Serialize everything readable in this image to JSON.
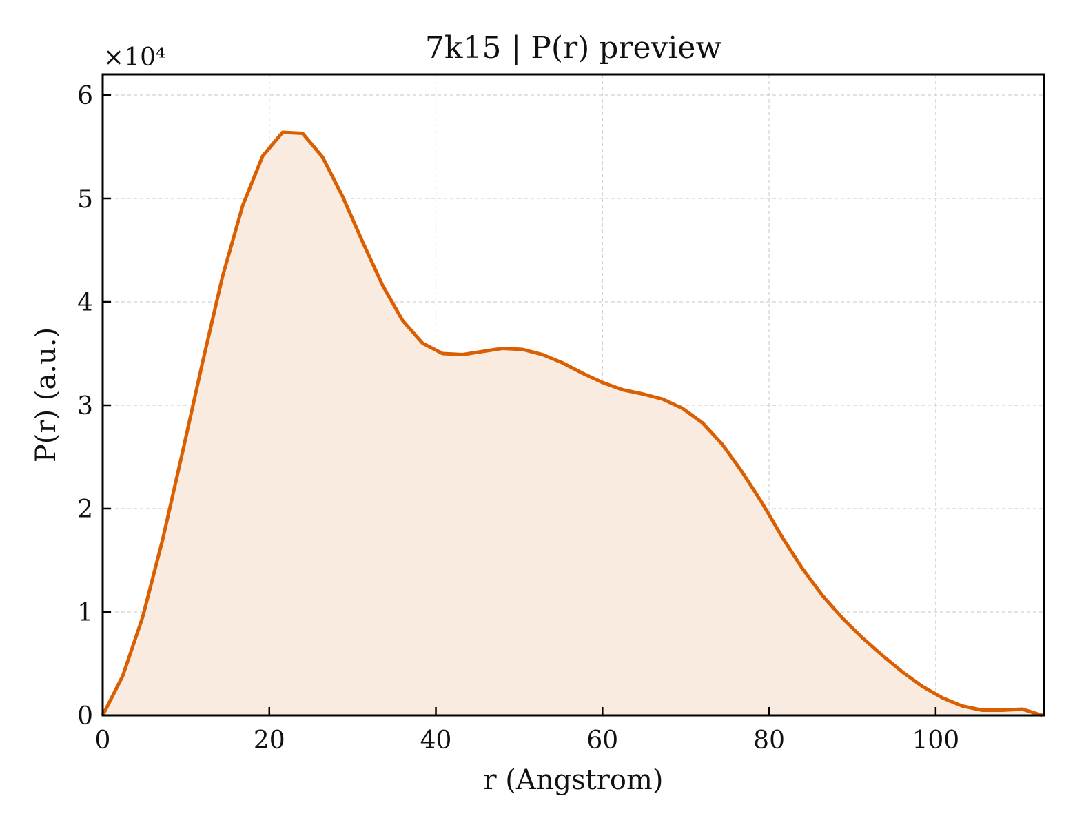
{
  "chart_data": {
    "type": "area",
    "title": "7k15 | P(r) preview",
    "xlabel": "r (Angstrom)",
    "ylabel": "P(r) (a.u.)",
    "y_multiplier_label": "×10⁴",
    "xlim": [
      0,
      113
    ],
    "ylim": [
      0,
      6.2
    ],
    "x_ticks": [
      0,
      20,
      40,
      60,
      80,
      100
    ],
    "y_ticks": [
      0,
      1,
      2,
      3,
      4,
      5,
      6
    ],
    "grid": true,
    "line_color": "#d95f02",
    "fill_color": "#f9ebe0",
    "series": [
      {
        "x": [
          0,
          2.4,
          4.8,
          7.2,
          9.6,
          12.0,
          14.4,
          16.8,
          19.2,
          21.6,
          24.0,
          26.4,
          28.8,
          31.2,
          33.6,
          36.0,
          38.4,
          40.8,
          43.2,
          45.6,
          48.0,
          50.4,
          52.8,
          55.2,
          57.6,
          60.0,
          62.4,
          64.8,
          67.2,
          69.6,
          72.0,
          74.4,
          76.8,
          79.2,
          81.6,
          84.0,
          86.4,
          88.8,
          91.2,
          93.6,
          96.0,
          98.4,
          100.8,
          103.2,
          105.6,
          108.0,
          110.4,
          112.8
        ],
        "y": [
          0.0,
          0.38,
          0.95,
          1.7,
          2.55,
          3.42,
          4.25,
          4.93,
          5.41,
          5.64,
          5.63,
          5.4,
          5.02,
          4.58,
          4.16,
          3.82,
          3.6,
          3.5,
          3.49,
          3.52,
          3.55,
          3.54,
          3.49,
          3.41,
          3.31,
          3.22,
          3.15,
          3.11,
          3.06,
          2.97,
          2.83,
          2.62,
          2.35,
          2.05,
          1.72,
          1.42,
          1.16,
          0.94,
          0.75,
          0.58,
          0.42,
          0.28,
          0.17,
          0.09,
          0.05,
          0.05,
          0.06,
          0.0
        ]
      }
    ]
  }
}
